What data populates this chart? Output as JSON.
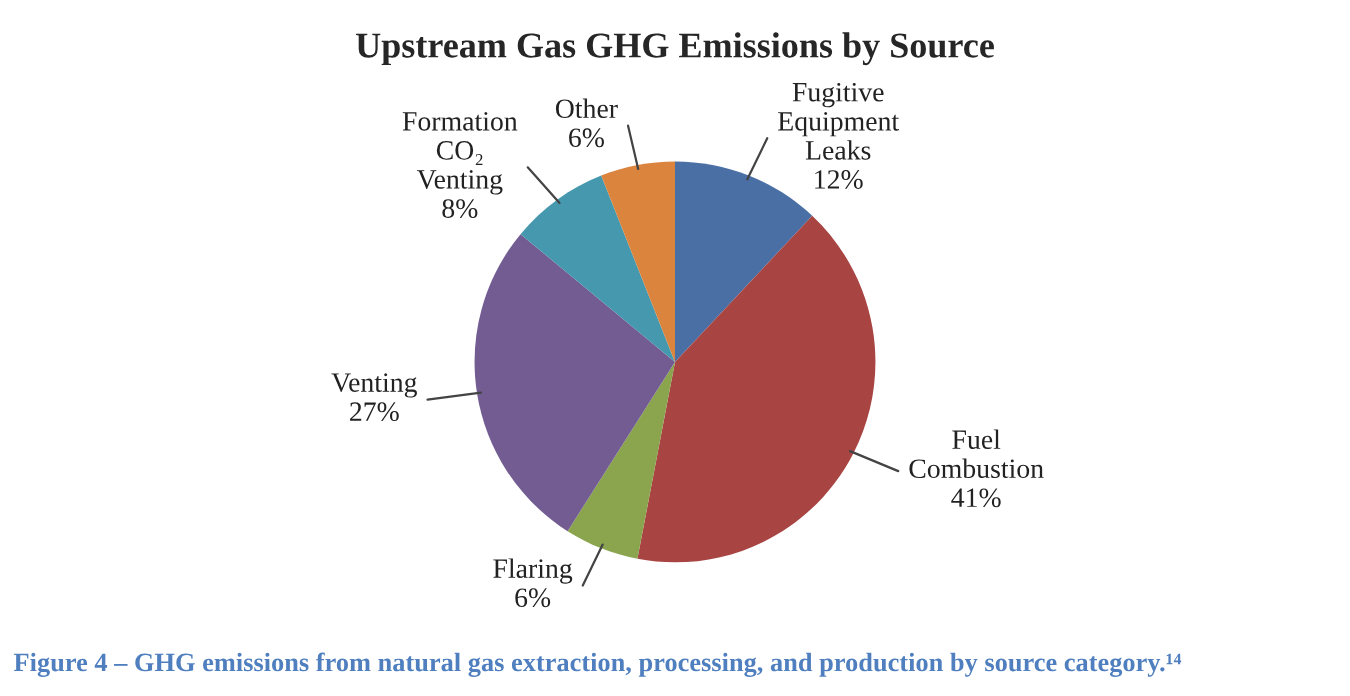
{
  "chart_data": {
    "type": "pie",
    "title": "Upstream Gas GHG Emissions by Source",
    "categories": [
      "Fugitive\nEquipment\nLeaks",
      "Fuel\nCombustion",
      "Flaring",
      "Venting",
      "Formation\nCO₂\nVenting",
      "Other"
    ],
    "values": [
      12,
      41,
      6,
      27,
      8,
      6
    ],
    "value_labels": [
      "12%",
      "41%",
      "6%",
      "27%",
      "8%",
      "6%"
    ],
    "colors": [
      "#4a6fa5",
      "#a84442",
      "#8aa54e",
      "#725c92",
      "#4598ae",
      "#db843d"
    ],
    "annotations": [
      "Figure 4 – GHG emissions from natural gas extraction, processing, and production by source category.¹⁴"
    ]
  }
}
